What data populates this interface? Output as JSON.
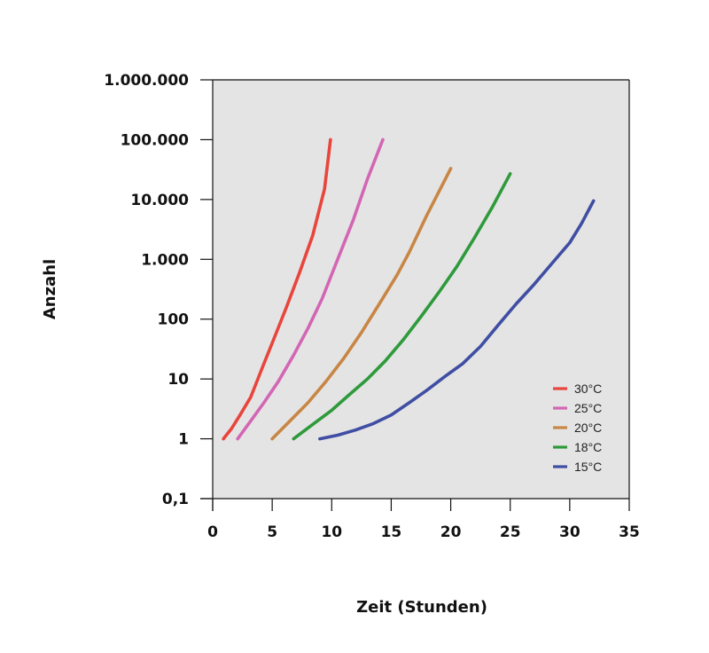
{
  "chart_data": {
    "type": "line",
    "title": "",
    "xlabel": "Zeit (Stunden)",
    "ylabel": "Anzahl",
    "xlim": [
      0,
      35
    ],
    "ylim": [
      0.1,
      1000000
    ],
    "y_scale": "log",
    "grid": false,
    "legend_position": "bottom-right",
    "background_color": "#e4e4e4",
    "x_ticks": [
      {
        "value": 0,
        "label": "0"
      },
      {
        "value": 5,
        "label": "5"
      },
      {
        "value": 10,
        "label": "10"
      },
      {
        "value": 15,
        "label": "15"
      },
      {
        "value": 20,
        "label": "20"
      },
      {
        "value": 25,
        "label": "25"
      },
      {
        "value": 30,
        "label": "30"
      },
      {
        "value": 35,
        "label": "35"
      }
    ],
    "y_ticks": [
      {
        "value": 0.1,
        "label": "0,1"
      },
      {
        "value": 1,
        "label": "1"
      },
      {
        "value": 10,
        "label": "10"
      },
      {
        "value": 100,
        "label": "100"
      },
      {
        "value": 1000,
        "label": "1.000"
      },
      {
        "value": 10000,
        "label": "10.000"
      },
      {
        "value": 100000,
        "label": "100.000"
      },
      {
        "value": 1000000,
        "label": "1.000.000"
      }
    ],
    "series": [
      {
        "name": "30°C",
        "color": "#e8453c",
        "points": [
          [
            0.9,
            1
          ],
          [
            1.6,
            1.5
          ],
          [
            2.3,
            2.5
          ],
          [
            3.2,
            5
          ],
          [
            4.2,
            16
          ],
          [
            5.2,
            50
          ],
          [
            6.2,
            160
          ],
          [
            7.3,
            600
          ],
          [
            8.4,
            2500
          ],
          [
            9.4,
            15000
          ],
          [
            9.9,
            100000
          ]
        ]
      },
      {
        "name": "25°C",
        "color": "#d366b4",
        "points": [
          [
            2.1,
            1
          ],
          [
            3.2,
            2
          ],
          [
            4.3,
            4
          ],
          [
            5.5,
            9
          ],
          [
            6.8,
            25
          ],
          [
            8.0,
            70
          ],
          [
            9.2,
            220
          ],
          [
            10.5,
            1000
          ],
          [
            11.8,
            4500
          ],
          [
            13.0,
            22000
          ],
          [
            14.3,
            100000
          ]
        ]
      },
      {
        "name": "20°C",
        "color": "#c88645",
        "points": [
          [
            5.0,
            1
          ],
          [
            6.5,
            2
          ],
          [
            8.0,
            4
          ],
          [
            9.5,
            9
          ],
          [
            11.0,
            22
          ],
          [
            12.5,
            60
          ],
          [
            14.0,
            180
          ],
          [
            15.5,
            550
          ],
          [
            16.5,
            1300
          ],
          [
            18.0,
            5500
          ],
          [
            20.0,
            33000
          ]
        ]
      },
      {
        "name": "18°C",
        "color": "#2e9a3b",
        "points": [
          [
            6.8,
            1
          ],
          [
            8.5,
            1.8
          ],
          [
            10.0,
            3
          ],
          [
            11.5,
            5.5
          ],
          [
            13.0,
            10
          ],
          [
            14.5,
            20
          ],
          [
            16.0,
            45
          ],
          [
            17.5,
            110
          ],
          [
            19.0,
            280
          ],
          [
            20.5,
            750
          ],
          [
            22.0,
            2300
          ],
          [
            23.5,
            7500
          ],
          [
            25.0,
            27000
          ]
        ]
      },
      {
        "name": "15°C",
        "color": "#3f4ea3",
        "points": [
          [
            9.0,
            1
          ],
          [
            10.5,
            1.15
          ],
          [
            12.0,
            1.4
          ],
          [
            13.5,
            1.8
          ],
          [
            15.0,
            2.5
          ],
          [
            16.5,
            4
          ],
          [
            18.0,
            6.5
          ],
          [
            19.5,
            11
          ],
          [
            21.0,
            18
          ],
          [
            22.5,
            35
          ],
          [
            24.0,
            80
          ],
          [
            25.5,
            180
          ],
          [
            27.0,
            380
          ],
          [
            28.5,
            850
          ],
          [
            30.0,
            1900
          ],
          [
            31.0,
            4000
          ],
          [
            32.0,
            9500
          ]
        ]
      }
    ]
  }
}
